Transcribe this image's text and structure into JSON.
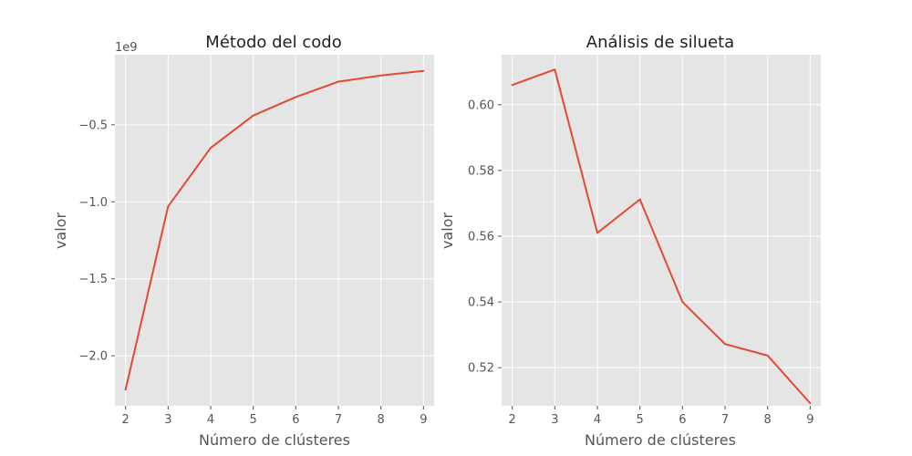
{
  "chart_data": [
    {
      "type": "line",
      "title": "Método del codo",
      "xlabel": "Número de clústeres",
      "ylabel": "valor",
      "y_exponent_label": "1e9",
      "x": [
        2,
        3,
        4,
        5,
        6,
        7,
        8,
        9
      ],
      "x_ticks": [
        2,
        3,
        4,
        5,
        6,
        7,
        8,
        9
      ],
      "series": [
        {
          "values": [
            -2.22,
            -1.03,
            -0.65,
            -0.44,
            -0.32,
            -0.22,
            -0.18,
            -0.15
          ],
          "color": "#e24a33"
        }
      ],
      "y_ticks": [
        -2.0,
        -1.5,
        -1.0,
        -0.5
      ],
      "y_tick_labels": [
        "−2.0",
        "−1.5",
        "−1.0",
        "−0.5"
      ],
      "xlim": [
        1.75,
        9.25
      ],
      "ylim": [
        -2.325,
        -0.045
      ],
      "grid": true
    },
    {
      "type": "line",
      "title": "Análisis de silueta",
      "xlabel": "Número de clústeres",
      "ylabel": "valor",
      "x": [
        2,
        3,
        4,
        5,
        6,
        7,
        8,
        9
      ],
      "x_ticks": [
        2,
        3,
        4,
        5,
        6,
        7,
        8,
        9
      ],
      "series": [
        {
          "values": [
            0.606,
            0.6107,
            0.561,
            0.5712,
            0.54,
            0.5272,
            0.5237,
            0.5092
          ],
          "color": "#e24a33"
        }
      ],
      "y_ticks": [
        0.52,
        0.54,
        0.56,
        0.58,
        0.6
      ],
      "y_tick_labels": [
        "0.52",
        "0.54",
        "0.56",
        "0.58",
        "0.60"
      ],
      "xlim": [
        1.75,
        9.25
      ],
      "ylim": [
        0.5084,
        0.6152
      ],
      "grid": true
    }
  ]
}
